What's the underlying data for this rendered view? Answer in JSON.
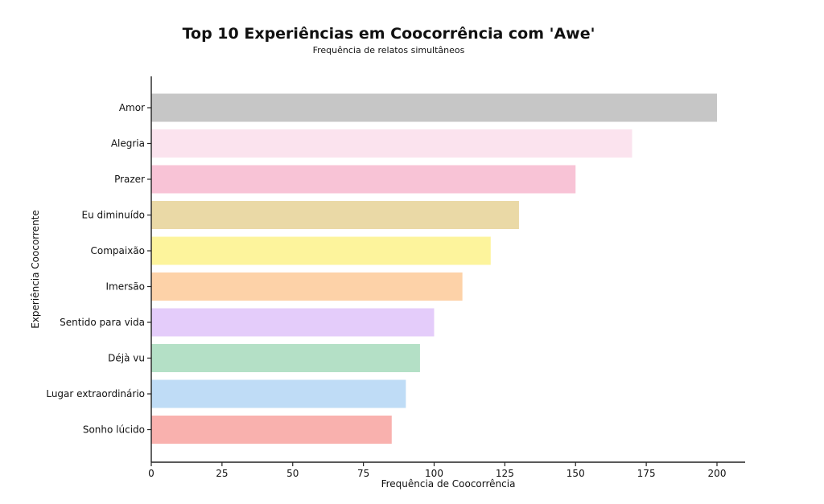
{
  "chart_data": {
    "type": "bar",
    "orientation": "horizontal",
    "title": "Top 10 Experiências em Coocorrência com 'Awe'",
    "subtitle": "Frequência de relatos simultâneos",
    "xlabel": "Frequência de Coocorrência",
    "ylabel": "Experiência Coocorrente",
    "xlim": [
      0,
      210
    ],
    "xticks": [
      0,
      25,
      50,
      75,
      100,
      125,
      150,
      175,
      200
    ],
    "grid": false,
    "categories": [
      "Amor",
      "Alegria",
      "Prazer",
      "Eu diminuído",
      "Compaixão",
      "Imersão",
      "Sentido para vida",
      "Déjà vu",
      "Lugar extraordinário",
      "Sonho lúcido"
    ],
    "values": [
      200,
      170,
      150,
      130,
      120,
      110,
      100,
      95,
      90,
      85
    ],
    "colors": [
      "#c6c6c6",
      "#fbe3ee",
      "#f8c3d6",
      "#ead9a6",
      "#fdf49c",
      "#fdd2a8",
      "#e4ccfa",
      "#b4e0c6",
      "#bfdcf6",
      "#f9b1ae"
    ]
  }
}
